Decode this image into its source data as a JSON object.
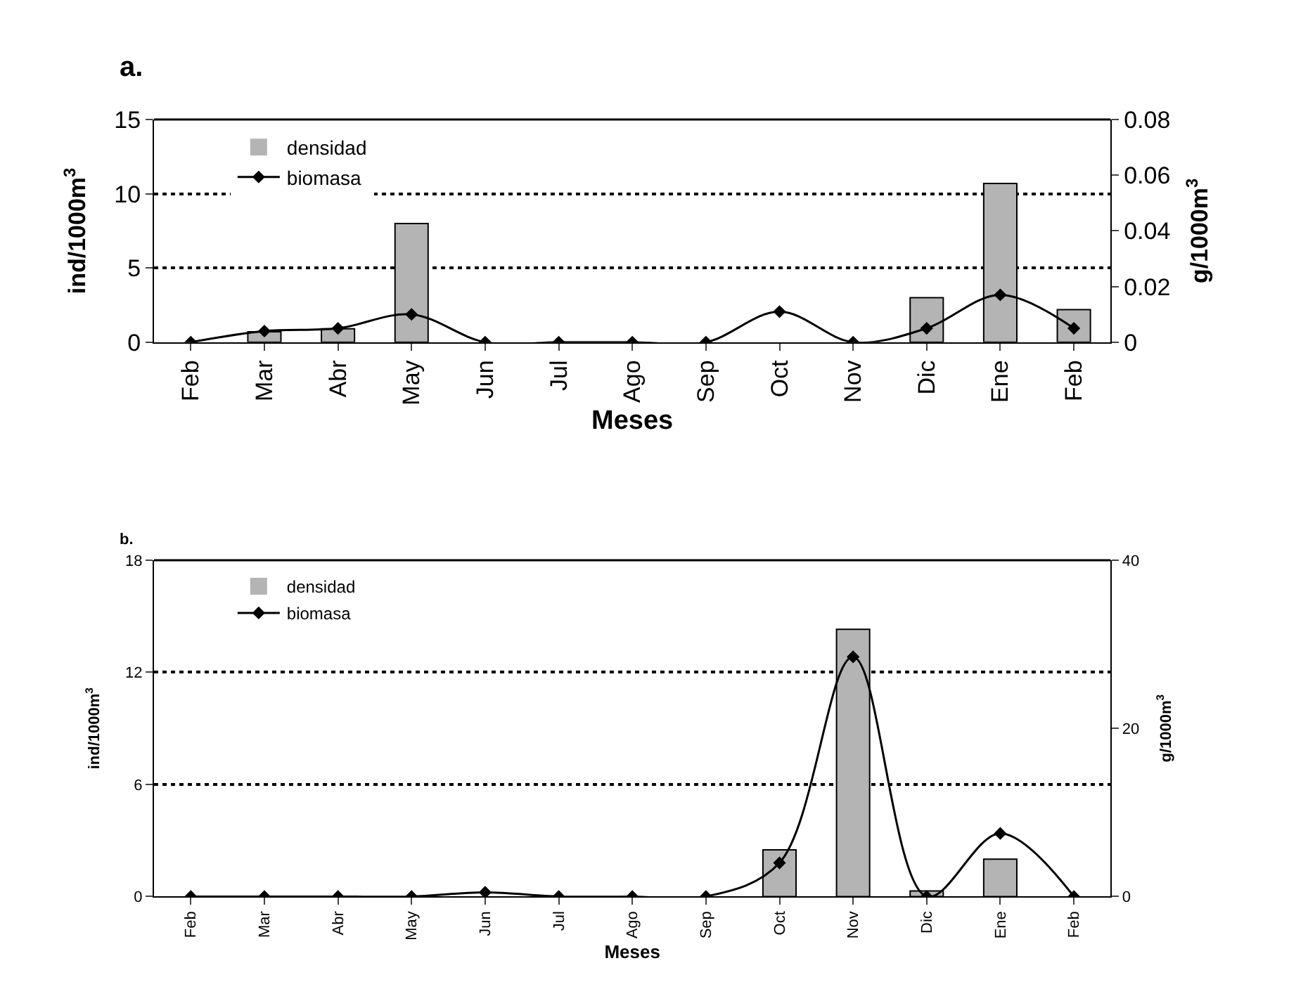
{
  "chart_data": [
    {
      "type": "bar",
      "title": "a.",
      "xlabel": "Meses",
      "ylabel": "ind/1000m$^{3}$",
      "y2label": "g/1000m$^{3}$",
      "categories": [
        "Feb",
        "Mar",
        "Abr",
        "May",
        "Jun",
        "Jul",
        "Ago",
        "Sep",
        "Oct",
        "Nov",
        "Dic",
        "Ene",
        "Feb"
      ],
      "series": [
        {
          "name": "densidad",
          "color": "#b4b4b4",
          "values": [
            0,
            0.7,
            0.9,
            8,
            0,
            0,
            0,
            0,
            0,
            0,
            3,
            10.7,
            2.2
          ]
        },
        {
          "name": "biomasa",
          "type": "line",
          "axis": "y2",
          "color": "#000000",
          "marker": "diamond",
          "values": [
            0,
            0.004,
            0.005,
            0.01,
            0,
            0,
            0,
            0,
            0.011,
            0,
            0.005,
            0.017,
            0.005
          ]
        }
      ],
      "ylim": [
        0,
        15
      ],
      "yticks": [
        0,
        5,
        10,
        15
      ],
      "y2lim": [
        0,
        0.08
      ],
      "y2ticks": [
        0,
        0.02,
        0.04,
        0.06,
        0.08
      ],
      "grid": "y",
      "legend": "top left"
    },
    {
      "type": "bar",
      "title": "b.",
      "xlabel": "Meses",
      "ylabel": "ind/1000m$^{3}$",
      "y2label": "g/1000m$^{3}$",
      "categories": [
        "Feb",
        "Mar",
        "Abr",
        "May",
        "Jun",
        "Jul",
        "Ago",
        "Sep",
        "Oct",
        "Nov",
        "Dic",
        "Ene",
        "Feb"
      ],
      "series": [
        {
          "name": "densidad",
          "color": "#b4b4b4",
          "values": [
            0,
            0,
            0,
            0,
            0,
            0,
            0,
            0,
            2.5,
            14.3,
            0.3,
            2,
            0
          ]
        },
        {
          "name": "biomasa",
          "type": "line",
          "axis": "y2",
          "color": "#000000",
          "marker": "diamond",
          "values": [
            0,
            0,
            0,
            0,
            0.5,
            0,
            0,
            0,
            4,
            28.5,
            0,
            7.5,
            0
          ]
        }
      ],
      "ylim": [
        0,
        18
      ],
      "yticks": [
        0,
        6,
        12,
        18
      ],
      "y2lim": [
        0,
        40
      ],
      "y2ticks": [
        0,
        20,
        40
      ],
      "grid": "y",
      "legend": "top left"
    }
  ]
}
